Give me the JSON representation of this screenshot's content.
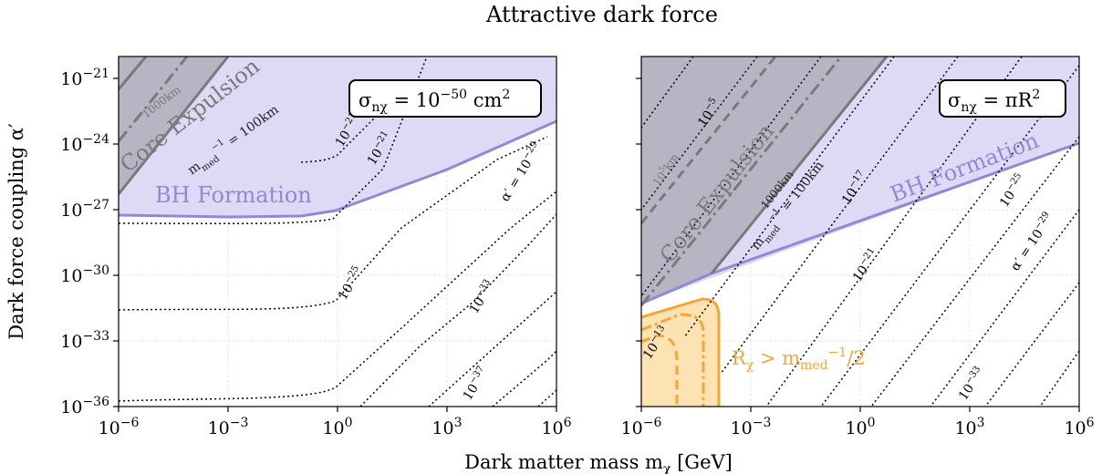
{
  "figure": {
    "title": "Attractive dark force",
    "xlabel": "Dark matter mass m_χ [GeV]",
    "ylabel": "Dark force coupling α′"
  },
  "colors": {
    "core_fill": "#b7b5c4",
    "core_line": "#7a7a7a",
    "bh_fill": "#dcdaf4",
    "bh_line": "#9089d6",
    "contour": "#000000",
    "orange_fill": "#fde2b3",
    "orange_line": "#f7a531",
    "grid": "#e0e0e0"
  },
  "chart_data": [
    {
      "type": "area",
      "panel": "left",
      "legend_box": "σ_nχ = 10^{-50} cm²",
      "xscale": "log",
      "yscale": "log",
      "xlim": [
        1e-06,
        1000000.0
      ],
      "ylim": [
        1e-36,
        1e-20
      ],
      "xticks": [
        "10^{-6}",
        "10^{-3}",
        "10^{0}",
        "10^{3}",
        "10^{6}"
      ],
      "yticks": [
        "10^{-36}",
        "10^{-33}",
        "10^{-30}",
        "10^{-27}",
        "10^{-24}",
        "10^{-21}"
      ],
      "grid": true,
      "regions": [
        {
          "name": "BH Formation",
          "boundary": {
            "x": [
              1e-06,
              0.0001,
              0.01,
              1,
              1000,
              1000000.0
            ],
            "y": [
              5e-28,
              4.8e-28,
              4.8e-28,
              7e-28,
              1e-25,
              1.6e-23
            ]
          }
        },
        {
          "name": "Core Expulsion",
          "boundary": {
            "x": [
              1e-06,
              0.0001
            ],
            "y": [
              2e-26,
              1e-20
            ]
          }
        }
      ],
      "lines": [
        {
          "name": "m_med^{-1} = 100km",
          "style": "solid",
          "x": [
            1e-06,
            0.0001
          ],
          "y": [
            2e-26,
            1e-20
          ]
        },
        {
          "name": "1000km",
          "style": "dashdot",
          "x": [
            1e-06,
            1e-05
          ],
          "y": [
            2e-24,
            5e-21
          ]
        },
        {
          "name": "boundary",
          "style": "solid",
          "x": [
            1e-06,
            3e-06
          ],
          "y": [
            2e-22,
            1e-20
          ]
        }
      ],
      "contour_labels": [
        "10^{-21}",
        "10^{-21}",
        "α′ = 10^{-29}",
        "10^{-25}",
        "10^{-33}",
        "10^{-37}"
      ]
    },
    {
      "type": "area",
      "panel": "right",
      "legend_box": "σ_nχ = πR²",
      "xscale": "log",
      "yscale": "log",
      "xlim": [
        1e-06,
        1000000.0
      ],
      "ylim": [
        1e-36,
        1e-20
      ],
      "xticks": [
        "10^{-6}",
        "10^{-3}",
        "10^{0}",
        "10^{3}",
        "10^{6}"
      ],
      "grid": true,
      "regions": [
        {
          "name": "BH Formation",
          "boundary": {
            "x": [
              1e-06,
              1000000.0
            ],
            "y": [
              1e-31,
              2.5e-24
            ]
          }
        },
        {
          "name": "Core Expulsion",
          "boundary": {
            "x": [
              1e-06,
              0.03
            ],
            "y": [
              1e-31,
              1e-20
            ]
          }
        },
        {
          "name": "R_χ > m_med^{-1}/2",
          "boundary": {
            "x": [
              1e-06,
              1e-05,
              1e-05,
              1e-06
            ],
            "y": [
              4e-32,
              1e-31,
              1e-36,
              1e-36
            ]
          }
        }
      ],
      "lines": [
        {
          "name": "m_med^{-1} = 100km",
          "style": "solid",
          "x": [
            1e-06,
            0.03
          ],
          "y": [
            1e-31,
            1e-20
          ]
        },
        {
          "name": "1000km",
          "style": "dashdot",
          "x": [
            1e-06,
            0.01
          ],
          "y": [
            1e-30,
            1e-20
          ]
        },
        {
          "name": "10^5km",
          "style": "dashed",
          "x": [
            1e-06,
            0.0001
          ],
          "y": [
            1e-28,
            1e-20
          ]
        }
      ],
      "contour_labels": [
        "10^{-5}",
        "10^{-17}",
        "10^{-25}",
        "10^{-21}",
        "α′ = 10^{-29}",
        "10^{-33}",
        "10^{-13}"
      ],
      "region_label": "R_χ > m_med^{-1}/2"
    }
  ],
  "labels": {
    "left_core": "Core Expulsion",
    "left_bh": "BH Formation",
    "right_core": "Core Expulsion",
    "right_bh": "BH Formation"
  }
}
